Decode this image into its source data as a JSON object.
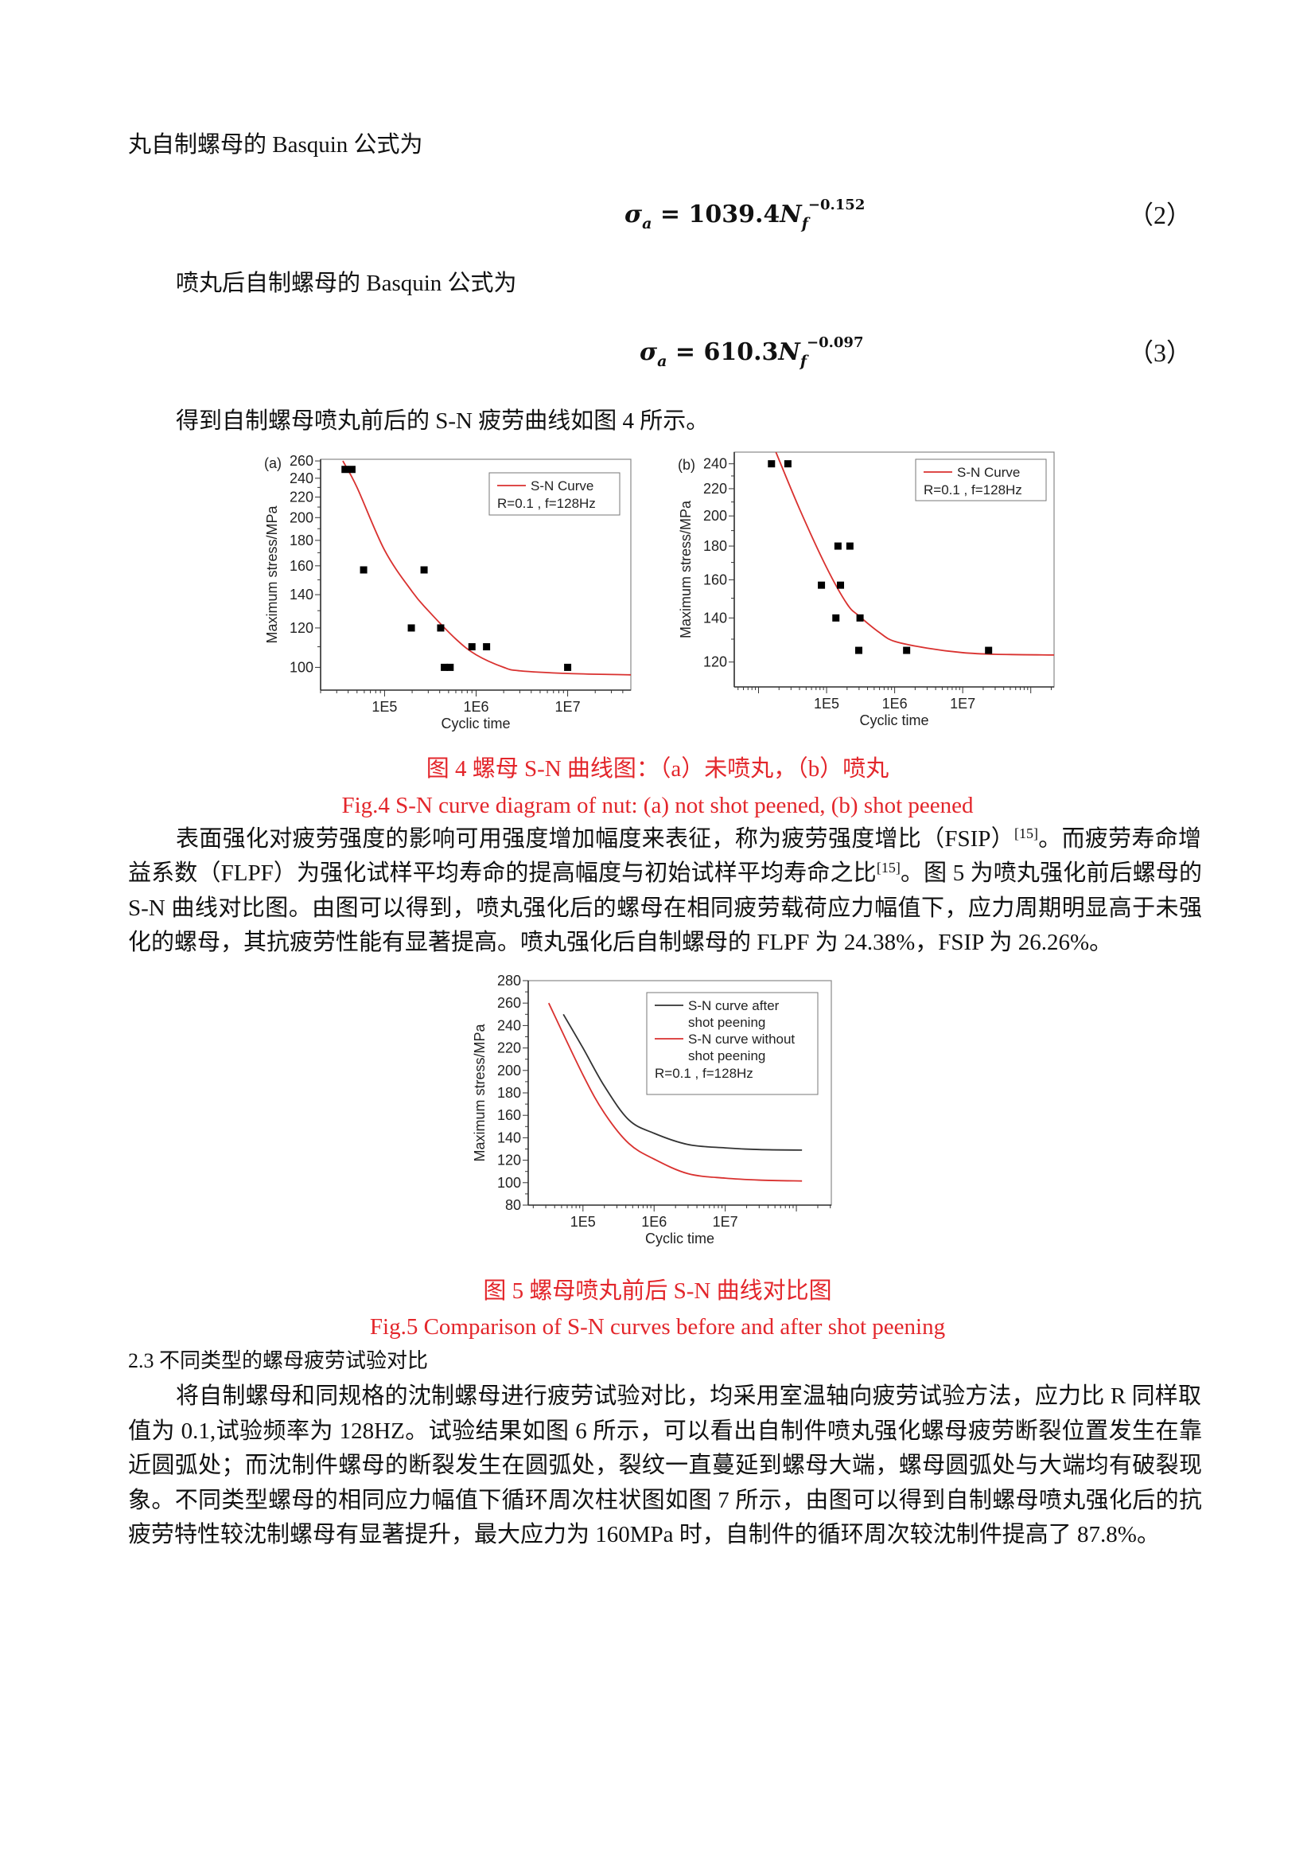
{
  "text": {
    "intro_line": "丸自制螺母的 Basquin 公式为",
    "eq2": {
      "lhs": "σ",
      "lhs_sub": "a",
      "eq": " = ",
      "coef": "1039.4",
      "var": "N",
      "var_sub": "f",
      "exp": "−0.152",
      "number": "（2）"
    },
    "after_line": "喷丸后自制螺母的 Basquin 公式为",
    "eq3": {
      "lhs": "σ",
      "lhs_sub": "a",
      "eq": " = ",
      "coef": "610.3",
      "var": "N",
      "var_sub": "f",
      "exp": "−0.097",
      "number": "（3）"
    },
    "result_line": "得到自制螺母喷丸前后的 S-N 疲劳曲线如图 4 所示。",
    "fig4_caption_cn": "图 4  螺母 S-N 曲线图：（a）未喷丸，（b）喷丸",
    "fig4_caption_en": "Fig.4 S-N curve diagram of nut: (a) not shot peened, (b) shot peened",
    "para1": [
      {
        "pre": "表面强化对疲劳强度的影响可用强度增加幅度来表征，称为疲劳强度增比（FSIP）",
        "sup": "[15]",
        "post": "。而疲劳寿命增"
      },
      {
        "pre": "益系数（FLPF）为强化试样平均寿命的提高幅度与初始试样平均寿命之比",
        "sup": "[15]",
        "post": "。图 5 为喷丸强化前后螺母的"
      },
      {
        "pre": "S-N 曲线对比图。由图可以得到，喷丸强化后的螺母在相同疲劳载荷应力幅值下，应力周期明显高于未强",
        "sup": "",
        "post": ""
      },
      {
        "pre": "化的螺母，其抗疲劳性能有显著提高。喷丸强化后自制螺母的 FLPF 为 24.38%，FSIP 为 26.26%。",
        "sup": "",
        "post": ""
      }
    ],
    "fig5_caption_cn": "图 5  螺母喷丸前后 S-N 曲线对比图",
    "fig5_caption_en": "Fig.5 Comparison of S-N curves before and after shot peening",
    "section_heading": "2.3 不同类型的螺母疲劳试验对比",
    "para2": [
      "将自制螺母和同规格的沈制螺母进行疲劳试验对比，均采用室温轴向疲劳试验方法，应力比 R 同样取",
      "值为 0.1,试验频率为 128HZ。试验结果如图 6 所示，可以看出自制件喷丸强化螺母疲劳断裂位置发生在靠",
      "近圆弧处；而沈制件螺母的断裂发生在圆弧处，裂纹一直蔓延到螺母大端，螺母圆弧处与大端均有破裂现",
      "象。不同类型螺母的相同应力幅值下循环周次柱状图如图 7 所示，由图可以得到自制螺母喷丸强化后的抗",
      "疲劳特性较沈制螺母有显著提升，最大应力为 160MPa 时，自制件的循环周次较沈制件提高了 87.8%。"
    ]
  },
  "colors": {
    "caption": "#e3262b",
    "curve_red": "#d9312f",
    "curve_black": "#333333",
    "points": "#000000"
  },
  "chart_data": [
    {
      "id": "fig4a",
      "type": "scatter",
      "panel_label": "(a)",
      "xlabel": "Cyclic time",
      "ylabel": "Maximum stress/MPa",
      "xscale": "log",
      "yscale": "log",
      "xlim": [
        20000,
        49000000
      ],
      "ylim": [
        90,
        262
      ],
      "xticks": [
        {
          "v": 100000,
          "label": "1E5"
        },
        {
          "v": 1000000,
          "label": "1E6"
        },
        {
          "v": 10000000,
          "label": "1E7"
        }
      ],
      "yticks": [
        100,
        120,
        140,
        160,
        180,
        200,
        220,
        240,
        260
      ],
      "legend": {
        "placement": "top-right",
        "entries": [
          {
            "label": "S-N Curve",
            "color": "#d9312f"
          }
        ],
        "note": "R=0.1 , f=128Hz"
      },
      "points": [
        [
          37000,
          250
        ],
        [
          44000,
          250
        ],
        [
          59000,
          157
        ],
        [
          196000,
          120
        ],
        [
          270000,
          157
        ],
        [
          410000,
          120
        ],
        [
          450000,
          100
        ],
        [
          520000,
          100
        ],
        [
          900000,
          110
        ],
        [
          1300000,
          110
        ],
        [
          10000000,
          100
        ]
      ],
      "curves": [
        {
          "name": "S-N Curve",
          "color": "#d9312f",
          "values": [
            [
              35000,
              260
            ],
            [
              50000,
              230
            ],
            [
              100000,
              172
            ],
            [
              200000,
              142
            ],
            [
              300000,
              130
            ],
            [
              600000,
              114
            ],
            [
              1000000,
              106
            ],
            [
              2000000,
              100
            ],
            [
              3000000,
              98.4
            ],
            [
              10000000,
              97.2
            ],
            [
              49000000,
              96.6
            ]
          ]
        }
      ]
    },
    {
      "id": "fig4b",
      "type": "scatter",
      "panel_label": "(b)",
      "xlabel": "Cyclic time",
      "ylabel": "Maximum stress/MPa",
      "xscale": "log",
      "yscale": "log",
      "xlim": [
        4400,
        220000000
      ],
      "ylim": [
        110,
        250
      ],
      "xticks": [
        {
          "v": 100000,
          "label": "1E5"
        },
        {
          "v": 1000000,
          "label": "1E6"
        },
        {
          "v": 10000000,
          "label": "1E7"
        }
      ],
      "yticks": [
        120,
        140,
        160,
        180,
        200,
        220,
        240
      ],
      "legend": {
        "placement": "top-right",
        "entries": [
          {
            "label": "S-N Curve",
            "color": "#d9312f"
          }
        ],
        "note": "R=0.1 , f=128Hz"
      },
      "points": [
        [
          15500,
          240
        ],
        [
          27000,
          240
        ],
        [
          84000,
          157
        ],
        [
          137000,
          140
        ],
        [
          147000,
          180
        ],
        [
          160000,
          157
        ],
        [
          220000,
          180
        ],
        [
          297000,
          125
        ],
        [
          310000,
          140
        ],
        [
          1500000,
          125
        ],
        [
          24000000,
          125
        ]
      ],
      "curves": [
        {
          "name": "S-N Curve",
          "color": "#d9312f",
          "values": [
            [
              18000,
              250
            ],
            [
              40000,
              205
            ],
            [
              100000,
              167
            ],
            [
              200000,
              147
            ],
            [
              300000,
              141
            ],
            [
              600000,
              133
            ],
            [
              1000000,
              129
            ],
            [
              3000000,
              126
            ],
            [
              10000000,
              124
            ],
            [
              30000000,
              123.3
            ],
            [
              220000000,
              123
            ]
          ]
        }
      ]
    },
    {
      "id": "fig5",
      "type": "line",
      "xlabel": "Cyclic time",
      "ylabel": "Maximum stress/MPa",
      "xscale": "log",
      "yscale": "linear",
      "xlim": [
        17000,
        310000000
      ],
      "ylim": [
        80,
        280
      ],
      "xticks": [
        {
          "v": 100000,
          "label": "1E5"
        },
        {
          "v": 1000000,
          "label": "1E6"
        },
        {
          "v": 10000000,
          "label": "1E7"
        }
      ],
      "yticks": [
        80,
        100,
        120,
        140,
        160,
        180,
        200,
        220,
        240,
        260,
        280
      ],
      "legend": {
        "placement": "top-right",
        "entries": [
          {
            "label": "S-N curve after",
            "label2": "shot peening",
            "color": "#333333"
          },
          {
            "label": "S-N curve without",
            "label2": "shot peening",
            "color": "#d9312f"
          }
        ],
        "note": "R=0.1 , f=128Hz"
      },
      "points": [],
      "curves": [
        {
          "name": "S-N curve after shot peening",
          "color": "#333333",
          "values": [
            [
              53000,
              250
            ],
            [
              100000,
              220
            ],
            [
              200000,
              186
            ],
            [
              440000,
              156
            ],
            [
              1000000,
              144
            ],
            [
              3000000,
              134
            ],
            [
              10000000,
              131
            ],
            [
              30000000,
              129.5
            ],
            [
              120000000,
              129
            ]
          ]
        },
        {
          "name": "S-N curve without shot peening",
          "color": "#d9312f",
          "values": [
            [
              33000,
              260
            ],
            [
              100000,
              196
            ],
            [
              200000,
              162
            ],
            [
              440000,
              135
            ],
            [
              1000000,
              121
            ],
            [
              3000000,
              108
            ],
            [
              10000000,
              104
            ],
            [
              30000000,
              102.3
            ],
            [
              120000000,
              101.5
            ]
          ]
        }
      ]
    }
  ]
}
